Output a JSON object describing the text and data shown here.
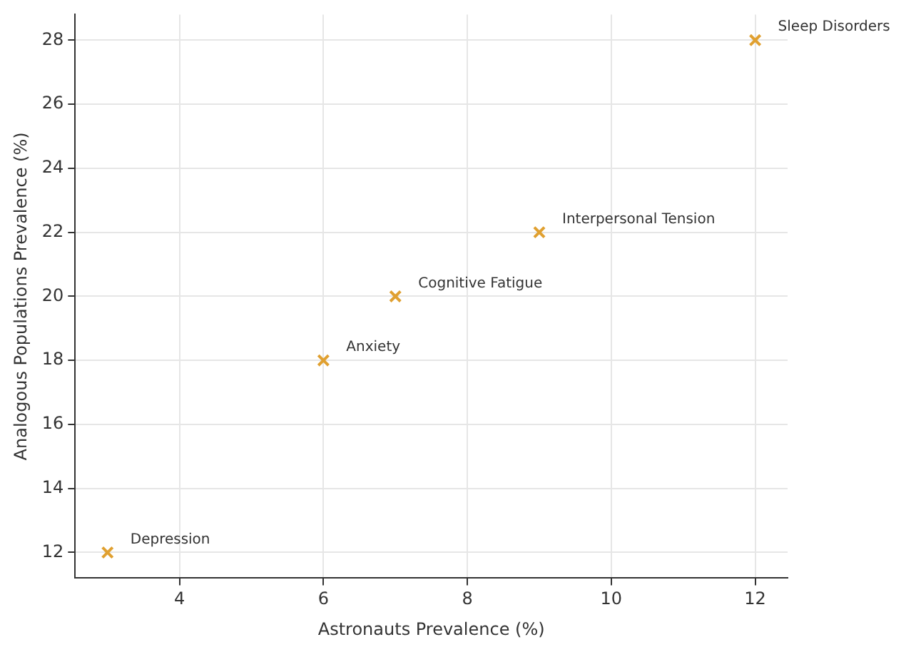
{
  "chart_data": {
    "type": "scatter",
    "xlabel": "Astronauts Prevalence (%)",
    "ylabel": "Analogous Populations Prevalence (%)",
    "x": [
      3,
      6,
      7,
      9,
      12
    ],
    "values": [
      12,
      18,
      20,
      22,
      28
    ],
    "color": "#e0a030",
    "marker": "cross",
    "xlim": [
      2.55,
      12.45
    ],
    "ylim": [
      11.2,
      28.8
    ],
    "xticks": [
      4,
      6,
      8,
      10,
      12
    ],
    "yticks": [
      12,
      14,
      16,
      18,
      20,
      22,
      24,
      26,
      28
    ],
    "grid": true,
    "annotations": [
      {
        "text": "Depression",
        "x": 3,
        "y": 12
      },
      {
        "text": "Anxiety",
        "x": 6,
        "y": 18
      },
      {
        "text": "Cognitive Fatigue",
        "x": 7,
        "y": 20
      },
      {
        "text": "Interpersonal Tension",
        "x": 9,
        "y": 22
      },
      {
        "text": "Sleep Disorders",
        "x": 12,
        "y": 28
      }
    ]
  }
}
